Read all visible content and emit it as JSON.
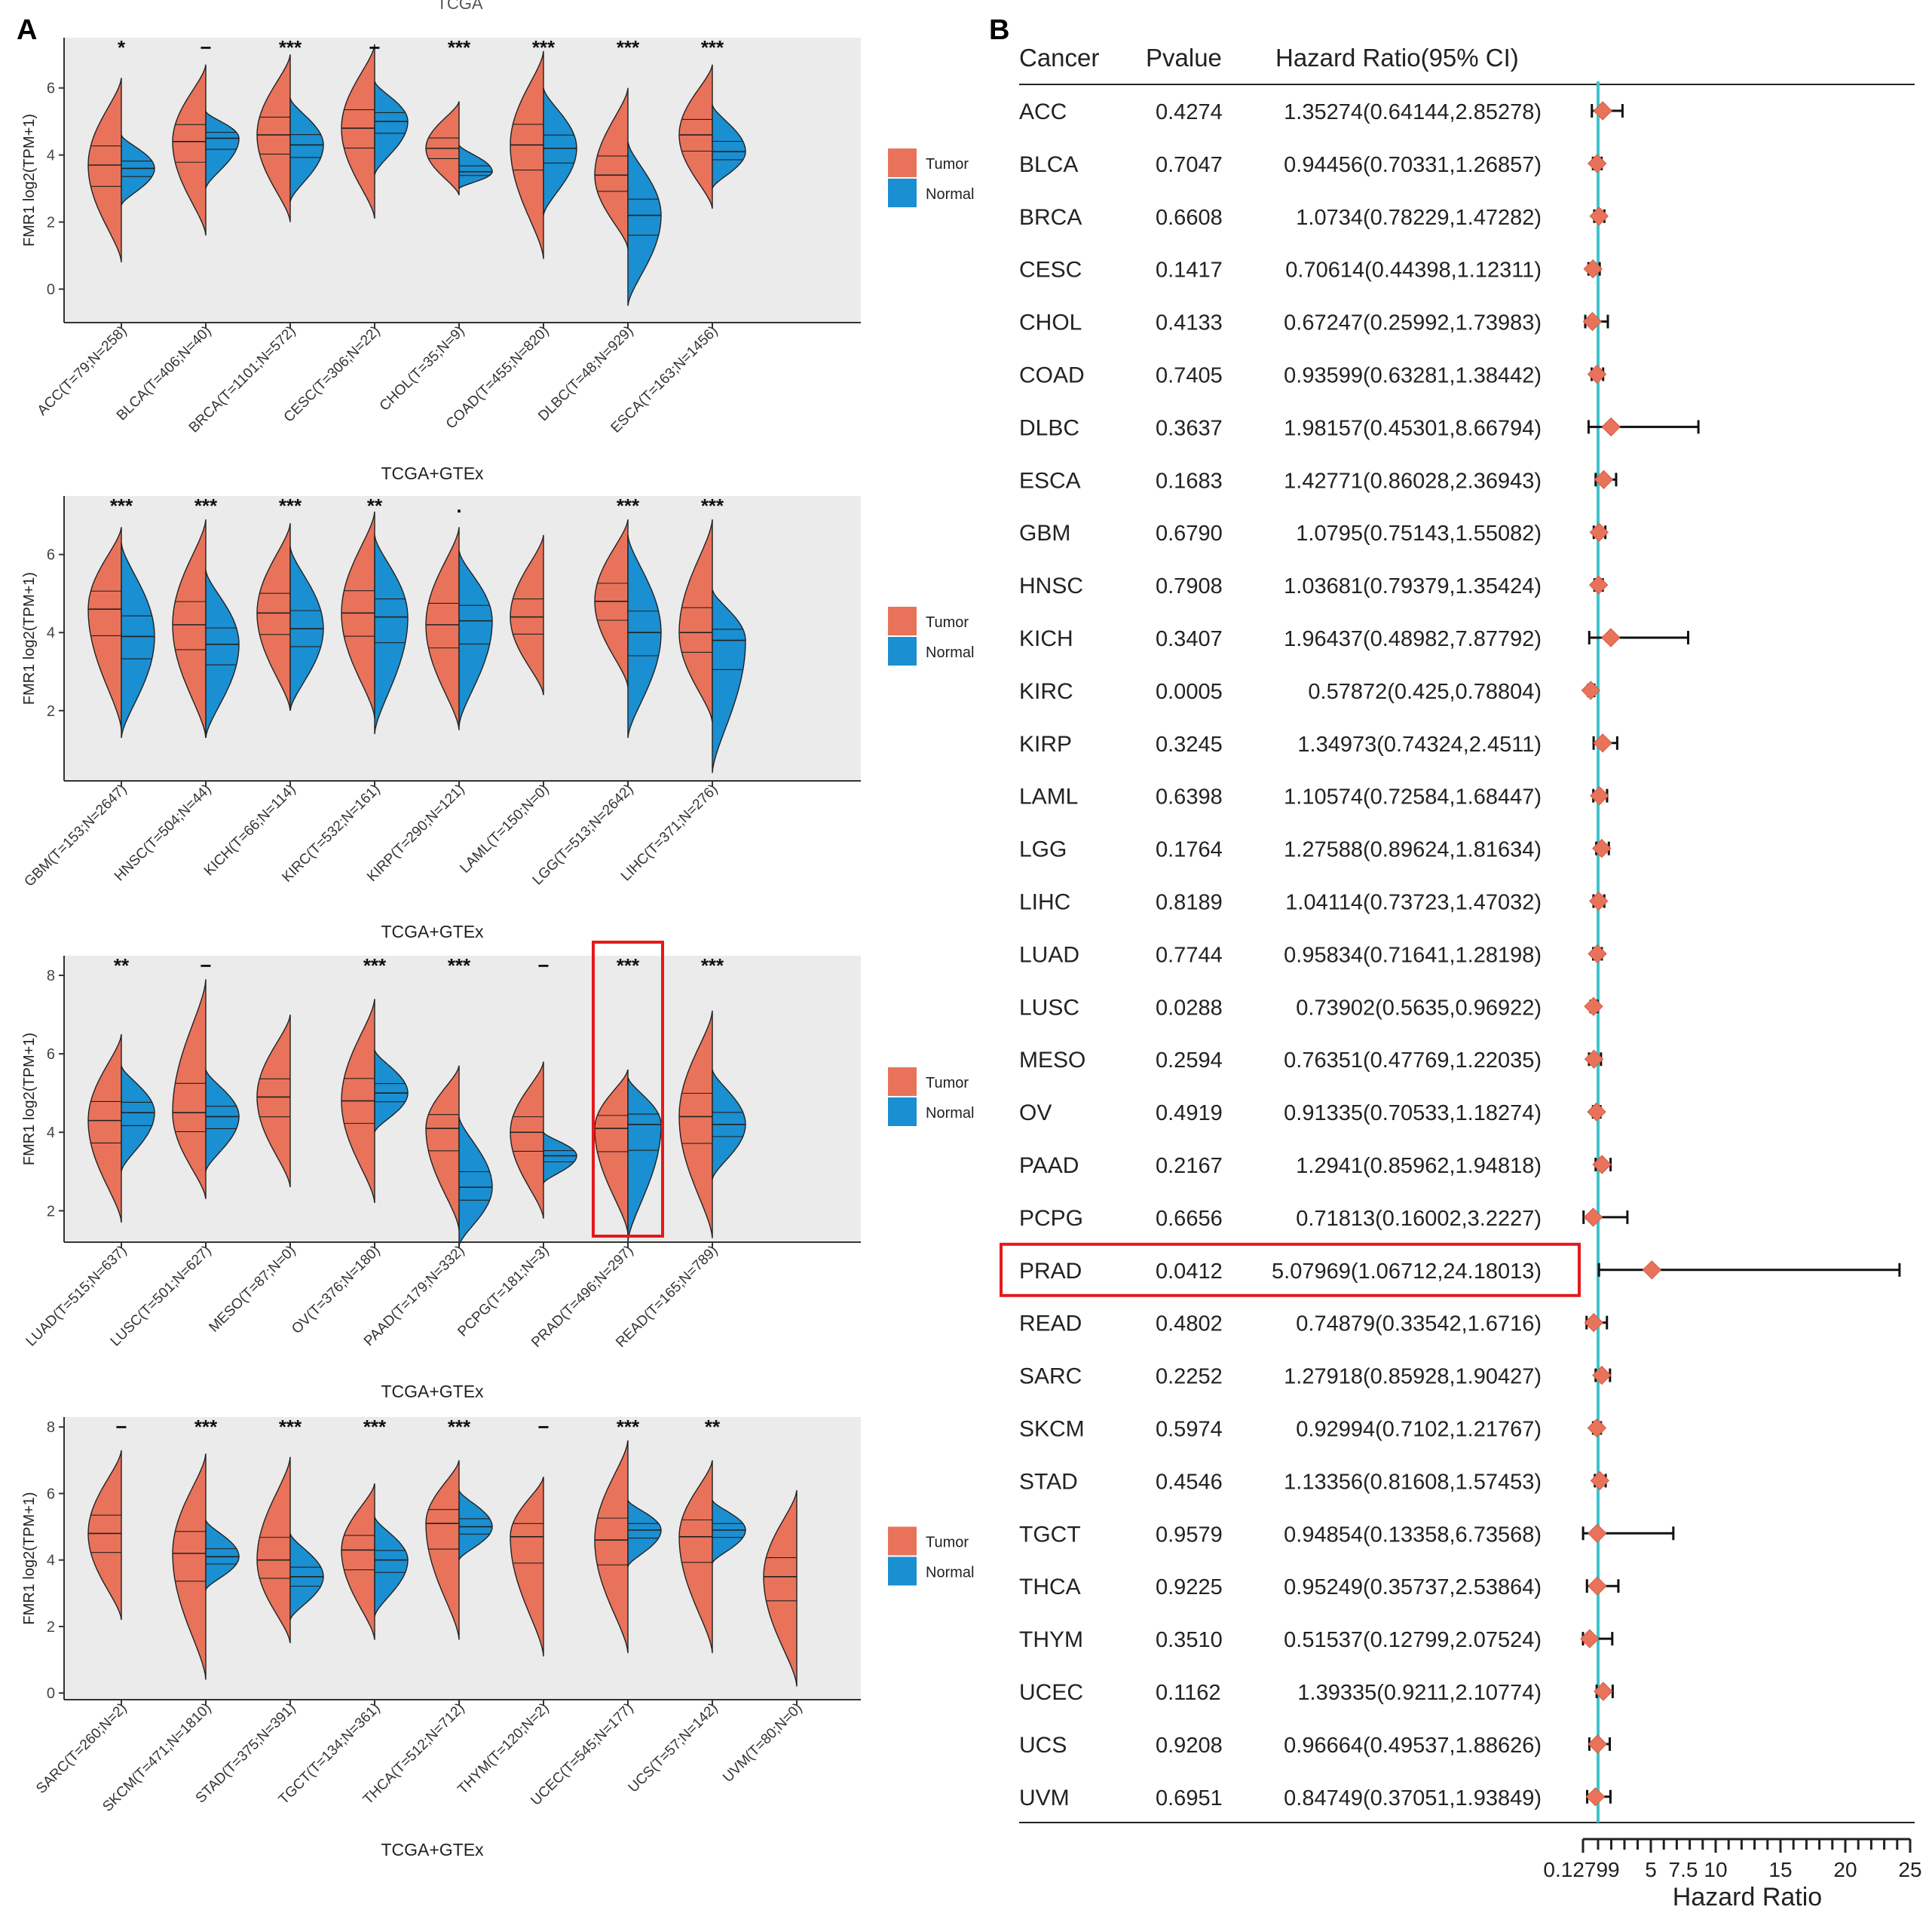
{
  "panel_a_label": "A",
  "panel_b_label": "B",
  "top_clipped_label": "TCGA",
  "colors": {
    "tumor": "#e8735a",
    "normal": "#1a8fd1",
    "panel_bg": "#ebebeb",
    "highlight": "#e31a1c",
    "forest_line": "#3cc4cc",
    "marker": "#e8735a"
  },
  "chart_data": [
    {
      "type": "violin",
      "panel": "A1",
      "xlabel": "TCGA+GTEx",
      "ylabel": "FMR1  log2(TPM+1)",
      "ylim": [
        -1,
        7.5
      ],
      "yticks": [
        0,
        2,
        4,
        6
      ],
      "legend": [
        "Tumor",
        "Normal"
      ],
      "legend_position": "right",
      "categories": [
        "ACC(T=79;N=258)",
        "BLCA(T=406;N=40)",
        "BRCA(T=1101;N=572)",
        "CESC(T=306;N=22)",
        "CHOL(T=35;N=9)",
        "COAD(T=455;N=820)",
        "DLBC(T=48;N=929)",
        "ESCA(T=163;N=1456)"
      ],
      "significance": [
        "*",
        "−",
        "***",
        "−",
        "***",
        "***",
        "***",
        "***"
      ],
      "tumor": [
        {
          "med": 3.7,
          "min": 0.8,
          "max": 6.3
        },
        {
          "med": 4.4,
          "min": 1.6,
          "max": 6.7
        },
        {
          "med": 4.6,
          "min": 2.0,
          "max": 7.0
        },
        {
          "med": 4.8,
          "min": 2.1,
          "max": 7.3
        },
        {
          "med": 4.2,
          "min": 2.8,
          "max": 5.6
        },
        {
          "med": 4.3,
          "min": 0.9,
          "max": 7.1
        },
        {
          "med": 3.4,
          "min": 1.2,
          "max": 6.0
        },
        {
          "med": 4.6,
          "min": 2.4,
          "max": 6.7
        }
      ],
      "normal": [
        {
          "med": 3.6,
          "min": 2.5,
          "max": 4.6
        },
        {
          "med": 4.5,
          "min": 3.0,
          "max": 5.3
        },
        {
          "med": 4.3,
          "min": 2.6,
          "max": 5.7
        },
        {
          "med": 5.0,
          "min": 3.4,
          "max": 6.2
        },
        {
          "med": 3.5,
          "min": 3.0,
          "max": 4.3
        },
        {
          "med": 4.2,
          "min": 2.2,
          "max": 6.0
        },
        {
          "med": 2.2,
          "min": -0.5,
          "max": 4.4
        },
        {
          "med": 4.1,
          "min": 3.0,
          "max": 5.5
        }
      ]
    },
    {
      "type": "violin",
      "panel": "A2",
      "xlabel": "TCGA+GTEx",
      "ylabel": "FMR1  log2(TPM+1)",
      "ylim": [
        0.2,
        7.5
      ],
      "yticks": [
        2,
        4,
        6
      ],
      "legend": [
        "Tumor",
        "Normal"
      ],
      "legend_position": "right",
      "categories": [
        "GBM(T=153;N=2647)",
        "HNSC(T=504;N=44)",
        "KICH(T=66;N=114)",
        "KIRC(T=532;N=161)",
        "KIRP(T=290;N=121)",
        "LAML(T=150;N=0)",
        "LGG(T=513;N=2642)",
        "LIHC(T=371;N=276)"
      ],
      "significance": [
        "***",
        "***",
        "***",
        "**",
        ".",
        "",
        "***",
        "***"
      ],
      "tumor": [
        {
          "med": 4.6,
          "min": 1.5,
          "max": 6.7
        },
        {
          "med": 4.2,
          "min": 1.3,
          "max": 6.9
        },
        {
          "med": 4.5,
          "min": 2.0,
          "max": 6.8
        },
        {
          "med": 4.5,
          "min": 1.8,
          "max": 7.1
        },
        {
          "med": 4.2,
          "min": 1.5,
          "max": 6.7
        },
        {
          "med": 4.4,
          "min": 2.4,
          "max": 6.5
        },
        {
          "med": 4.8,
          "min": 2.6,
          "max": 6.9
        },
        {
          "med": 4.0,
          "min": 1.7,
          "max": 6.9
        }
      ],
      "normal": [
        {
          "med": 3.9,
          "min": 1.3,
          "max": 6.3
        },
        {
          "med": 3.7,
          "min": 1.3,
          "max": 5.6
        },
        {
          "med": 4.1,
          "min": 2.0,
          "max": 6.2
        },
        {
          "med": 4.4,
          "min": 1.4,
          "max": 6.5
        },
        {
          "med": 4.3,
          "min": 1.6,
          "max": 6.1
        },
        null,
        {
          "med": 4.0,
          "min": 1.3,
          "max": 6.5
        },
        {
          "med": 3.8,
          "min": 0.4,
          "max": 5.1
        }
      ]
    },
    {
      "type": "violin",
      "panel": "A3",
      "xlabel": "TCGA+GTEx",
      "ylabel": "FMR1  log2(TPM+1)",
      "ylim": [
        1.2,
        8.5
      ],
      "yticks": [
        2,
        4,
        6,
        8
      ],
      "legend": [
        "Tumor",
        "Normal"
      ],
      "legend_position": "right",
      "highlighted_category": "PRAD(T=496;N=297)",
      "categories": [
        "LUAD(T=515;N=637)",
        "LUSC(T=501;N=627)",
        "MESO(T=87;N=0)",
        "OV(T=376;N=180)",
        "PAAD(T=179;N=332)",
        "PCPG(T=181;N=3)",
        "PRAD(T=496;N=297)",
        "READ(T=165;N=789)"
      ],
      "significance": [
        "**",
        "−",
        "",
        "***",
        "***",
        "−",
        "***",
        "***"
      ],
      "tumor": [
        {
          "med": 4.3,
          "min": 1.7,
          "max": 6.5
        },
        {
          "med": 4.5,
          "min": 2.3,
          "max": 7.9
        },
        {
          "med": 4.9,
          "min": 2.6,
          "max": 7.0
        },
        {
          "med": 4.8,
          "min": 2.2,
          "max": 7.4
        },
        {
          "med": 4.1,
          "min": 1.5,
          "max": 5.7
        },
        {
          "med": 4.0,
          "min": 1.8,
          "max": 5.8
        },
        {
          "med": 4.1,
          "min": 1.4,
          "max": 5.6
        },
        {
          "med": 4.4,
          "min": 1.3,
          "max": 7.1
        }
      ],
      "normal": [
        {
          "med": 4.5,
          "min": 3.0,
          "max": 5.7
        },
        {
          "med": 4.4,
          "min": 3.0,
          "max": 5.6
        },
        null,
        {
          "med": 5.0,
          "min": 4.0,
          "max": 6.1
        },
        {
          "med": 2.6,
          "min": 1.1,
          "max": 4.4
        },
        {
          "med": 3.4,
          "min": 2.7,
          "max": 4.0
        },
        {
          "med": 4.2,
          "min": 1.2,
          "max": 5.4
        },
        {
          "med": 4.2,
          "min": 2.8,
          "max": 5.6
        }
      ]
    },
    {
      "type": "violin",
      "panel": "A4",
      "xlabel": "TCGA+GTEx",
      "ylabel": "FMR1  log2(TPM+1)",
      "ylim": [
        -0.2,
        8.3
      ],
      "yticks": [
        0,
        2,
        4,
        6,
        8
      ],
      "legend": [
        "Tumor",
        "Normal"
      ],
      "legend_position": "right",
      "categories": [
        "SARC(T=260;N=2)",
        "SKCM(T=471;N=1810)",
        "STAD(T=375;N=391)",
        "TGCT(T=134;N=361)",
        "THCA(T=512;N=712)",
        "THYM(T=120;N=2)",
        "UCEC(T=545;N=177)",
        "UCS(T=57;N=142)",
        "UVM(T=80;N=0)"
      ],
      "significance": [
        "−",
        "***",
        "***",
        "***",
        "***",
        "−",
        "***",
        "**",
        ""
      ],
      "tumor": [
        {
          "med": 4.8,
          "min": 2.2,
          "max": 7.3
        },
        {
          "med": 4.2,
          "min": 0.4,
          "max": 7.2
        },
        {
          "med": 4.0,
          "min": 1.5,
          "max": 7.1
        },
        {
          "med": 4.3,
          "min": 1.6,
          "max": 6.3
        },
        {
          "med": 5.1,
          "min": 1.6,
          "max": 7.0
        },
        {
          "med": 4.7,
          "min": 1.1,
          "max": 6.5
        },
        {
          "med": 4.6,
          "min": 1.2,
          "max": 7.6
        },
        {
          "med": 4.7,
          "min": 1.2,
          "max": 7.0
        },
        {
          "med": 3.5,
          "min": 0.2,
          "max": 6.1
        }
      ],
      "normal": [
        null,
        {
          "med": 4.1,
          "min": 3.1,
          "max": 5.2
        },
        {
          "med": 3.5,
          "min": 2.2,
          "max": 4.8
        },
        {
          "med": 4.0,
          "min": 2.3,
          "max": 5.3
        },
        {
          "med": 5.0,
          "min": 4.0,
          "max": 6.1
        },
        null,
        {
          "med": 4.9,
          "min": 3.8,
          "max": 5.8
        },
        {
          "med": 4.9,
          "min": 3.9,
          "max": 5.8
        },
        null
      ]
    },
    {
      "type": "forest",
      "panel": "B",
      "columns": [
        "Cancer",
        "Pvalue",
        "Hazard Ratio(95% CI)"
      ],
      "xlabel": "Hazard Ratio",
      "xticks": [
        "0.12799",
        "5",
        "7.5",
        "10",
        "15",
        "20",
        "25"
      ],
      "reference_line": 1,
      "highlighted_row": "PRAD",
      "rows": [
        {
          "cancer": "ACC",
          "p": "0.4274",
          "hr_text": "1.35274(0.64144,2.85278)",
          "hr": 1.35274,
          "lo": 0.64144,
          "hi": 2.85278
        },
        {
          "cancer": "BLCA",
          "p": "0.7047",
          "hr_text": "0.94456(0.70331,1.26857)",
          "hr": 0.94456,
          "lo": 0.70331,
          "hi": 1.26857
        },
        {
          "cancer": "BRCA",
          "p": "0.6608",
          "hr_text": "1.0734(0.78229,1.47282)",
          "hr": 1.0734,
          "lo": 0.78229,
          "hi": 1.47282
        },
        {
          "cancer": "CESC",
          "p": "0.1417",
          "hr_text": "0.70614(0.44398,1.12311)",
          "hr": 0.70614,
          "lo": 0.44398,
          "hi": 1.12311
        },
        {
          "cancer": "CHOL",
          "p": "0.4133",
          "hr_text": "0.67247(0.25992,1.73983)",
          "hr": 0.67247,
          "lo": 0.25992,
          "hi": 1.73983
        },
        {
          "cancer": "COAD",
          "p": "0.7405",
          "hr_text": "0.93599(0.63281,1.38442)",
          "hr": 0.93599,
          "lo": 0.63281,
          "hi": 1.38442
        },
        {
          "cancer": "DLBC",
          "p": "0.3637",
          "hr_text": "1.98157(0.45301,8.66794)",
          "hr": 1.98157,
          "lo": 0.45301,
          "hi": 8.66794
        },
        {
          "cancer": "ESCA",
          "p": "0.1683",
          "hr_text": "1.42771(0.86028,2.36943)",
          "hr": 1.42771,
          "lo": 0.86028,
          "hi": 2.36943
        },
        {
          "cancer": "GBM",
          "p": "0.6790",
          "hr_text": "1.0795(0.75143,1.55082)",
          "hr": 1.0795,
          "lo": 0.75143,
          "hi": 1.55082
        },
        {
          "cancer": "HNSC",
          "p": "0.7908",
          "hr_text": "1.03681(0.79379,1.35424)",
          "hr": 1.03681,
          "lo": 0.79379,
          "hi": 1.35424
        },
        {
          "cancer": "KICH",
          "p": "0.3407",
          "hr_text": "1.96437(0.48982,7.87792)",
          "hr": 1.96437,
          "lo": 0.48982,
          "hi": 7.87792
        },
        {
          "cancer": "KIRC",
          "p": "0.0005",
          "hr_text": "0.57872(0.425,0.78804)",
          "hr": 0.57872,
          "lo": 0.425,
          "hi": 0.78804
        },
        {
          "cancer": "KIRP",
          "p": "0.3245",
          "hr_text": "1.34973(0.74324,2.4511)",
          "hr": 1.34973,
          "lo": 0.74324,
          "hi": 2.4511
        },
        {
          "cancer": "LAML",
          "p": "0.6398",
          "hr_text": "1.10574(0.72584,1.68447)",
          "hr": 1.10574,
          "lo": 0.72584,
          "hi": 1.68447
        },
        {
          "cancer": "LGG",
          "p": "0.1764",
          "hr_text": "1.27588(0.89624,1.81634)",
          "hr": 1.27588,
          "lo": 0.89624,
          "hi": 1.81634
        },
        {
          "cancer": "LIHC",
          "p": "0.8189",
          "hr_text": "1.04114(0.73723,1.47032)",
          "hr": 1.04114,
          "lo": 0.73723,
          "hi": 1.47032
        },
        {
          "cancer": "LUAD",
          "p": "0.7744",
          "hr_text": "0.95834(0.71641,1.28198)",
          "hr": 0.95834,
          "lo": 0.71641,
          "hi": 1.28198
        },
        {
          "cancer": "LUSC",
          "p": "0.0288",
          "hr_text": "0.73902(0.5635,0.96922)",
          "hr": 0.73902,
          "lo": 0.5635,
          "hi": 0.96922
        },
        {
          "cancer": "MESO",
          "p": "0.2594",
          "hr_text": "0.76351(0.47769,1.22035)",
          "hr": 0.76351,
          "lo": 0.47769,
          "hi": 1.22035
        },
        {
          "cancer": "OV",
          "p": "0.4919",
          "hr_text": "0.91335(0.70533,1.18274)",
          "hr": 0.91335,
          "lo": 0.70533,
          "hi": 1.18274
        },
        {
          "cancer": "PAAD",
          "p": "0.2167",
          "hr_text": "1.2941(0.85962,1.94818)",
          "hr": 1.2941,
          "lo": 0.85962,
          "hi": 1.94818
        },
        {
          "cancer": "PCPG",
          "p": "0.6656",
          "hr_text": "0.71813(0.16002,3.2227)",
          "hr": 0.71813,
          "lo": 0.16002,
          "hi": 3.2227
        },
        {
          "cancer": "PRAD",
          "p": "0.0412",
          "hr_text": "5.07969(1.06712,24.18013)",
          "hr": 5.07969,
          "lo": 1.06712,
          "hi": 24.18013
        },
        {
          "cancer": "READ",
          "p": "0.4802",
          "hr_text": "0.74879(0.33542,1.6716)",
          "hr": 0.74879,
          "lo": 0.33542,
          "hi": 1.6716
        },
        {
          "cancer": "SARC",
          "p": "0.2252",
          "hr_text": "1.27918(0.85928,1.90427)",
          "hr": 1.27918,
          "lo": 0.85928,
          "hi": 1.90427
        },
        {
          "cancer": "SKCM",
          "p": "0.5974",
          "hr_text": "0.92994(0.7102,1.21767)",
          "hr": 0.92994,
          "lo": 0.7102,
          "hi": 1.21767
        },
        {
          "cancer": "STAD",
          "p": "0.4546",
          "hr_text": "1.13356(0.81608,1.57453)",
          "hr": 1.13356,
          "lo": 0.81608,
          "hi": 1.57453
        },
        {
          "cancer": "TGCT",
          "p": "0.9579",
          "hr_text": "0.94854(0.13358,6.73568)",
          "hr": 0.94854,
          "lo": 0.13358,
          "hi": 6.73568
        },
        {
          "cancer": "THCA",
          "p": "0.9225",
          "hr_text": "0.95249(0.35737,2.53864)",
          "hr": 0.95249,
          "lo": 0.35737,
          "hi": 2.53864
        },
        {
          "cancer": "THYM",
          "p": "0.3510",
          "hr_text": "0.51537(0.12799,2.07524)",
          "hr": 0.51537,
          "lo": 0.12799,
          "hi": 2.07524
        },
        {
          "cancer": "UCEC",
          "p": "0.1162",
          "hr_text": "1.39335(0.9211,2.10774)",
          "hr": 1.39335,
          "lo": 0.9211,
          "hi": 2.10774
        },
        {
          "cancer": "UCS",
          "p": "0.9208",
          "hr_text": "0.96664(0.49537,1.88626)",
          "hr": 0.96664,
          "lo": 0.49537,
          "hi": 1.88626
        },
        {
          "cancer": "UVM",
          "p": "0.6951",
          "hr_text": "0.84749(0.37051,1.93849)",
          "hr": 0.84749,
          "lo": 0.37051,
          "hi": 1.93849
        }
      ]
    }
  ]
}
